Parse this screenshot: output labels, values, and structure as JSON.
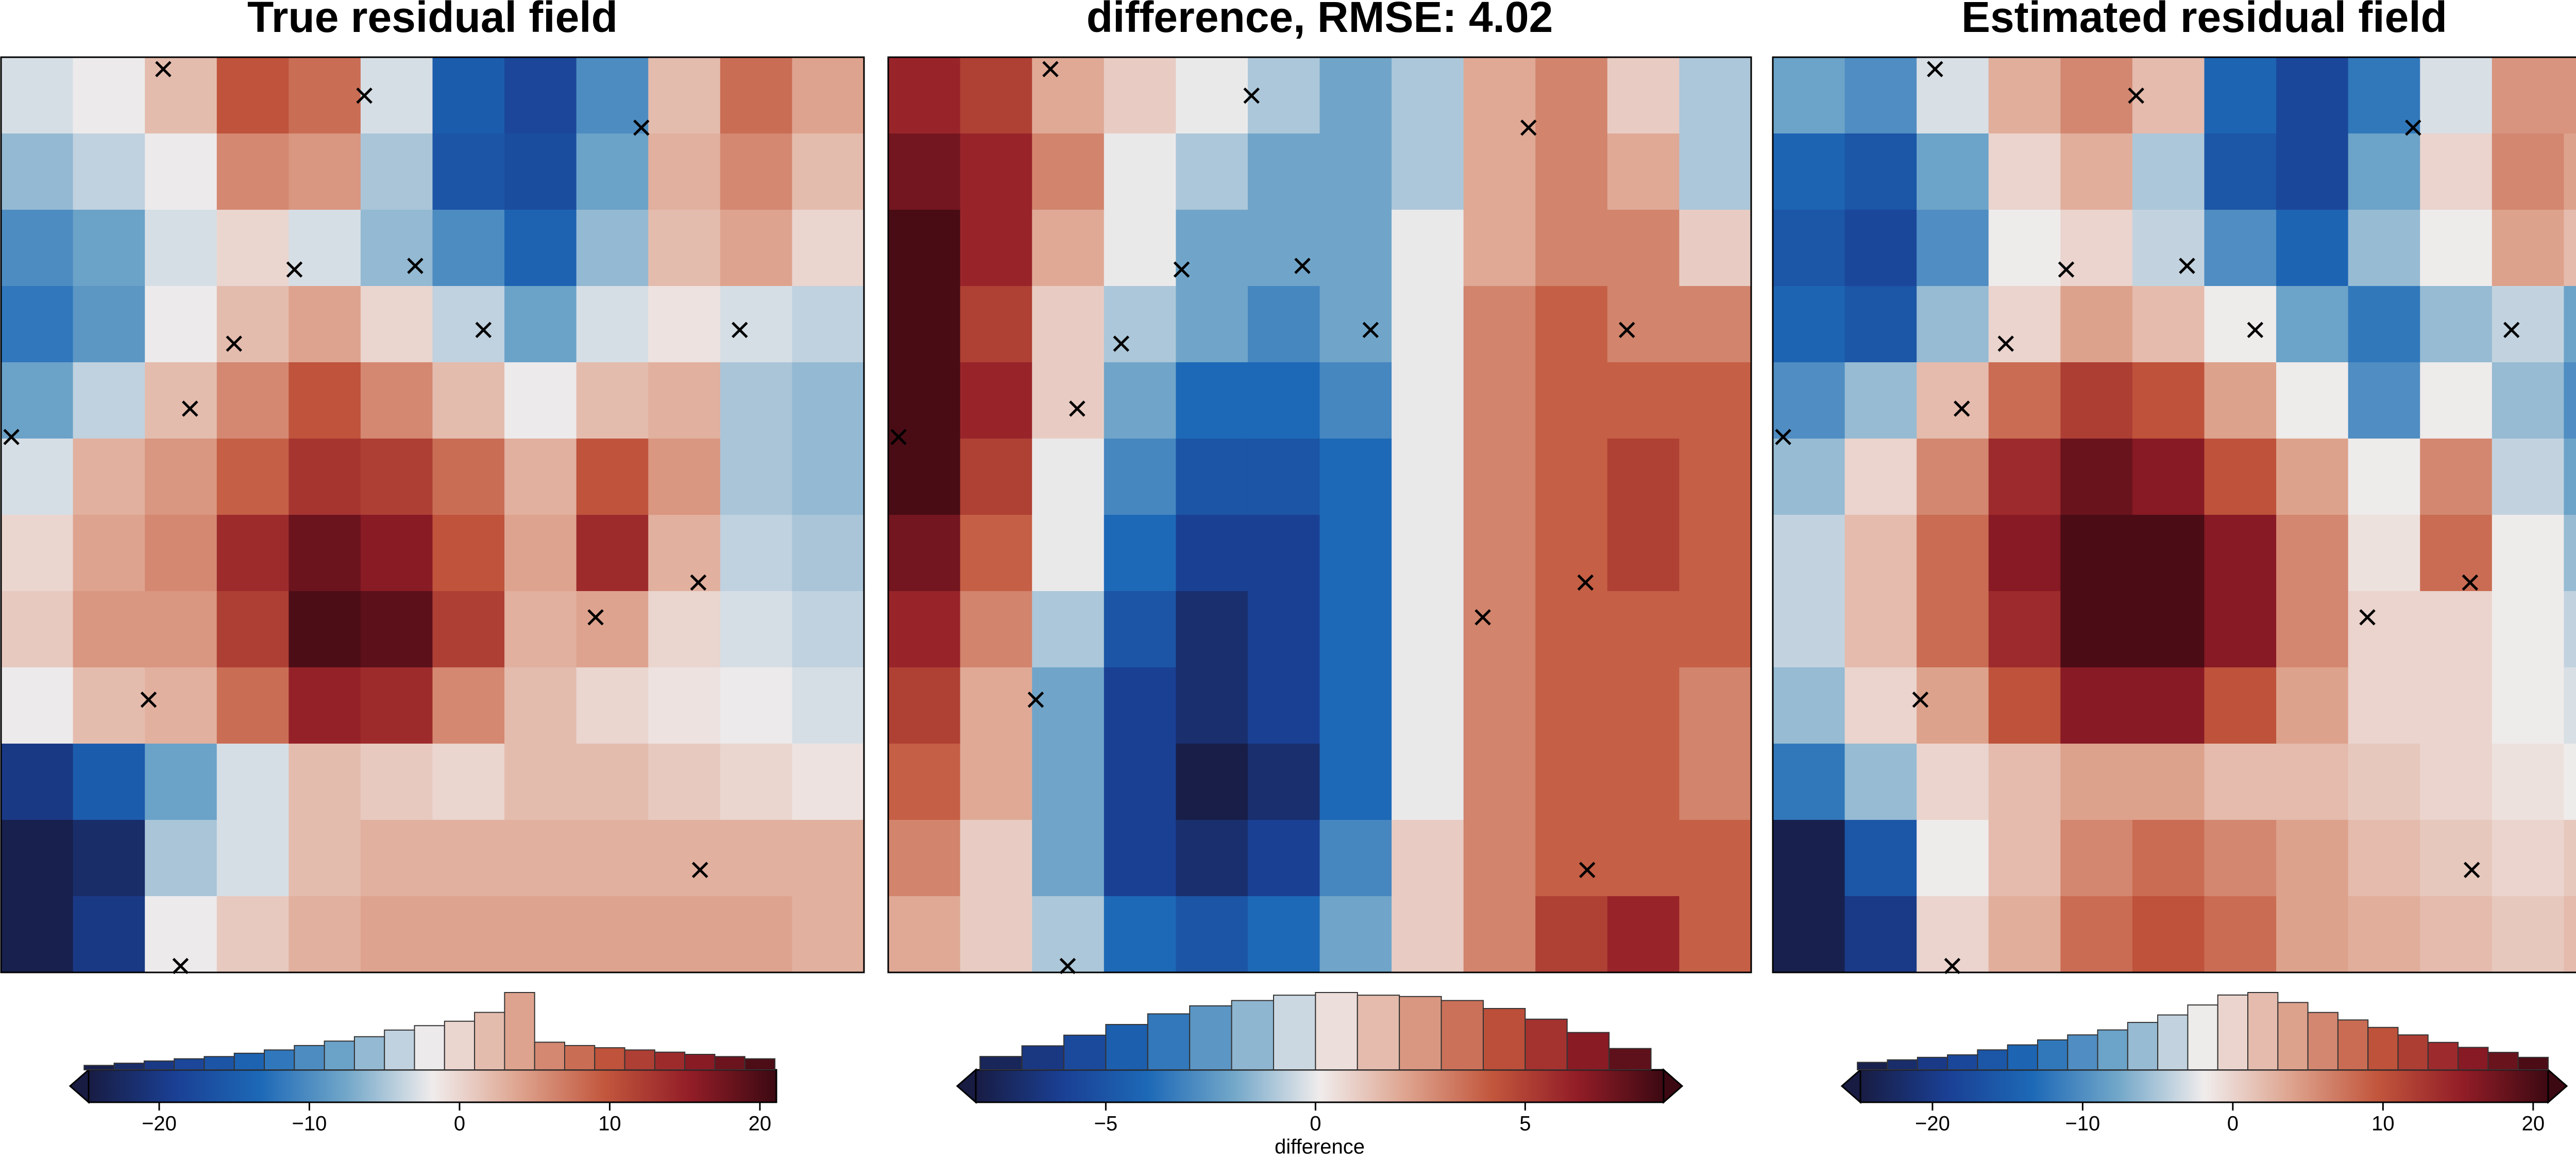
{
  "chart_data": [
    {
      "type": "heatmap",
      "title": "True residual field",
      "xlim": [
        0,
        100
      ],
      "ylim": [
        100,
        0
      ],
      "z": [
        [
          -3,
          -2,
          2,
          10,
          8,
          -3,
          -15,
          -18,
          -10,
          2,
          8,
          4
        ],
        [
          -6,
          -4,
          -2,
          6,
          5,
          -5,
          -16,
          -17,
          -8,
          3,
          6,
          2
        ],
        [
          -10,
          -8,
          -3,
          0,
          -3,
          -6,
          -10,
          -14,
          -6,
          2,
          4,
          0
        ],
        [
          -12,
          -9,
          -2,
          2,
          4,
          0,
          -4,
          -8,
          -3,
          -1,
          -3,
          -4
        ],
        [
          -8,
          -4,
          2,
          6,
          10,
          6,
          2,
          -2,
          2,
          3,
          -5,
          -6
        ],
        [
          -3,
          3,
          5,
          9,
          13,
          12,
          8,
          3,
          10,
          5,
          -5,
          -6
        ],
        [
          0,
          4,
          6,
          14,
          18,
          16,
          10,
          4,
          14,
          3,
          -4,
          -5
        ],
        [
          1,
          5,
          5,
          12,
          20,
          19,
          12,
          3,
          4,
          0,
          -3,
          -4
        ],
        [
          -2,
          2,
          3,
          8,
          15,
          14,
          6,
          2,
          0,
          -1,
          -2,
          -3
        ],
        [
          -20,
          -15,
          -8,
          -3,
          2,
          1,
          0,
          2,
          2,
          1,
          0,
          -1
        ],
        [
          -24,
          -22,
          -5,
          -3,
          2,
          3,
          3,
          3,
          3,
          3,
          3,
          3
        ],
        [
          -24,
          -20,
          -2,
          1,
          3,
          4,
          4,
          4,
          4,
          4,
          4,
          3
        ]
      ],
      "colormap": [
        "#181c43",
        "#1a3f93",
        "#1d69b7",
        "#72a7c9",
        "#f0ecec",
        "#dea48f",
        "#c2573d",
        "#921d27",
        "#3c0912"
      ],
      "points": {
        "marker": "x",
        "color": "#000000",
        "x": [
          18.8,
          42.1,
          74.2,
          34.0,
          48.0,
          55.9,
          85.6,
          27.0,
          21.9,
          1.2,
          80.8,
          68.9,
          17.1,
          81.0,
          20.8
        ],
        "y": [
          1.3,
          4.2,
          7.7,
          23.2,
          22.8,
          29.8,
          29.8,
          31.3,
          38.4,
          41.5,
          57.4,
          61.2,
          70.2,
          88.8,
          99.3
        ]
      },
      "colorbar": {
        "clim": [
          -24.7,
          21.1
        ],
        "extend": "min",
        "ticks": [
          {
            "value": -20,
            "label": "−20"
          },
          {
            "value": -10,
            "label": "−10"
          },
          0,
          10,
          20
        ]
      },
      "histogram": {
        "bins": [
          -25,
          -23,
          -21,
          -19,
          -17,
          -15,
          -13,
          -11,
          -9,
          -7,
          -5,
          -3,
          -1,
          1,
          3,
          5,
          7,
          9,
          11,
          13,
          15,
          17,
          19,
          21
        ],
        "counts": [
          4,
          6,
          8,
          10,
          12,
          15,
          18,
          22,
          26,
          30,
          36,
          40,
          44,
          52,
          70,
          25,
          22,
          20,
          18,
          16,
          14,
          12,
          10
        ]
      }
    },
    {
      "type": "heatmap",
      "title": "difference, RMSE: 4.02",
      "xlim": [
        0,
        100
      ],
      "ylim": [
        100,
        0
      ],
      "z": [
        [
          6,
          5,
          2,
          1,
          0,
          -1,
          -2,
          -1,
          2,
          3,
          1,
          -1
        ],
        [
          7,
          6,
          3,
          0,
          -1,
          -2,
          -2,
          -1,
          2,
          3,
          2,
          -1
        ],
        [
          8,
          6,
          2,
          0,
          -2,
          -2,
          -2,
          0,
          2,
          3,
          3,
          1
        ],
        [
          8,
          5,
          1,
          -1,
          -2,
          -3,
          -2,
          0,
          3,
          4,
          3,
          3
        ],
        [
          8,
          6,
          1,
          -2,
          -4,
          -4,
          -3,
          0,
          3,
          4,
          4,
          4
        ],
        [
          8,
          5,
          0,
          -3,
          -5,
          -5,
          -4,
          0,
          3,
          4,
          5,
          4
        ],
        [
          7,
          4,
          0,
          -4,
          -6,
          -6,
          -4,
          0,
          3,
          4,
          5,
          4
        ],
        [
          6,
          3,
          -1,
          -5,
          -7,
          -6,
          -4,
          0,
          3,
          4,
          4,
          4
        ],
        [
          5,
          2,
          -2,
          -6,
          -7,
          -6,
          -4,
          0,
          3,
          4,
          4,
          3
        ],
        [
          4,
          2,
          -2,
          -6,
          -8,
          -7,
          -4,
          0,
          3,
          4,
          4,
          3
        ],
        [
          3,
          1,
          -2,
          -6,
          -7,
          -6,
          -3,
          1,
          3,
          4,
          4,
          4
        ],
        [
          2,
          1,
          -1,
          -4,
          -5,
          -4,
          -2,
          1,
          3,
          5,
          6,
          4
        ]
      ],
      "colormap": [
        "#181c43",
        "#1a3f93",
        "#1d69b7",
        "#72a7c9",
        "#f0ecec",
        "#dea48f",
        "#c2573d",
        "#921d27",
        "#3c0912"
      ],
      "points": {
        "marker": "x",
        "color": "#000000",
        "x": [
          18.8,
          42.1,
          74.2,
          34.0,
          48.0,
          55.9,
          85.6,
          27.0,
          21.9,
          1.2,
          80.8,
          68.9,
          17.1,
          81.0,
          20.8
        ],
        "y": [
          1.3,
          4.2,
          7.7,
          23.2,
          22.8,
          29.8,
          29.8,
          31.3,
          38.4,
          41.5,
          57.4,
          61.2,
          70.2,
          88.8,
          99.3
        ]
      },
      "colorbar": {
        "clim": [
          -8.1,
          8.3
        ],
        "extend": "both",
        "label": "difference",
        "ticks": [
          {
            "value": -5,
            "label": "−5"
          },
          0,
          5
        ]
      },
      "histogram": {
        "bins": [
          -8,
          -7,
          -6,
          -5,
          -4,
          -3,
          -2,
          -1,
          0,
          1,
          2,
          3,
          4,
          5,
          6,
          7,
          8
        ],
        "counts": [
          10,
          18,
          26,
          34,
          42,
          48,
          52,
          56,
          58,
          56,
          55,
          52,
          46,
          38,
          28,
          16
        ]
      }
    },
    {
      "type": "heatmap",
      "title": "Estimated residual field",
      "xlim": [
        0,
        100
      ],
      "ylim": [
        100,
        0
      ],
      "z": [
        [
          -8,
          -10,
          -3,
          3,
          6,
          2,
          -14,
          -18,
          -12,
          -3,
          5,
          5
        ],
        [
          -14,
          -16,
          -8,
          0,
          3,
          -5,
          -16,
          -18,
          -8,
          0,
          6,
          4
        ],
        [
          -16,
          -18,
          -10,
          -2,
          0,
          -4,
          -10,
          -14,
          -6,
          -2,
          4,
          2
        ],
        [
          -14,
          -16,
          -6,
          0,
          4,
          2,
          -2,
          -8,
          -12,
          -6,
          -4,
          -8
        ],
        [
          -10,
          -6,
          2,
          8,
          12,
          10,
          4,
          -2,
          -10,
          -2,
          -6,
          -10
        ],
        [
          -6,
          0,
          6,
          14,
          18,
          16,
          10,
          4,
          -2,
          6,
          -4,
          -8
        ],
        [
          -4,
          2,
          8,
          16,
          20,
          20,
          16,
          6,
          -1,
          8,
          -2,
          -6
        ],
        [
          -4,
          2,
          8,
          14,
          20,
          20,
          16,
          6,
          0,
          0,
          -2,
          -4
        ],
        [
          -6,
          0,
          4,
          10,
          16,
          16,
          10,
          4,
          0,
          0,
          -2,
          -3
        ],
        [
          -12,
          -6,
          0,
          2,
          4,
          4,
          2,
          2,
          1,
          0,
          -1,
          -2
        ],
        [
          -24,
          -16,
          -2,
          2,
          6,
          8,
          6,
          4,
          2,
          1,
          0,
          1
        ],
        [
          -24,
          -20,
          0,
          3,
          8,
          10,
          8,
          4,
          3,
          2,
          1,
          2
        ]
      ],
      "colormap": [
        "#181c43",
        "#1a3f93",
        "#1d69b7",
        "#72a7c9",
        "#f0ecec",
        "#dea48f",
        "#c2573d",
        "#921d27",
        "#3c0912"
      ],
      "points": {
        "marker": "x",
        "color": "#000000",
        "x": [
          18.8,
          42.1,
          74.2,
          34.0,
          48.0,
          55.9,
          85.6,
          27.0,
          21.9,
          1.2,
          80.8,
          68.9,
          17.1,
          81.0,
          20.8
        ],
        "y": [
          1.3,
          4.2,
          7.7,
          23.2,
          22.8,
          29.8,
          29.8,
          31.3,
          38.4,
          41.5,
          57.4,
          61.2,
          70.2,
          88.8,
          99.3
        ]
      },
      "colorbar": {
        "clim": [
          -24.8,
          21.0
        ],
        "extend": "both",
        "ticks": [
          {
            "value": -20,
            "label": "−20"
          },
          {
            "value": -10,
            "label": "−10"
          },
          0,
          10,
          20
        ]
      },
      "histogram": {
        "bins": [
          -25,
          -23,
          -21,
          -19,
          -17,
          -15,
          -13,
          -11,
          -9,
          -7,
          -5,
          -3,
          -1,
          1,
          3,
          5,
          7,
          9,
          11,
          13,
          15,
          17,
          19,
          21
        ],
        "counts": [
          6,
          8,
          10,
          12,
          16,
          20,
          24,
          28,
          32,
          38,
          44,
          52,
          60,
          62,
          54,
          46,
          40,
          34,
          28,
          22,
          18,
          14,
          10
        ]
      }
    }
  ]
}
